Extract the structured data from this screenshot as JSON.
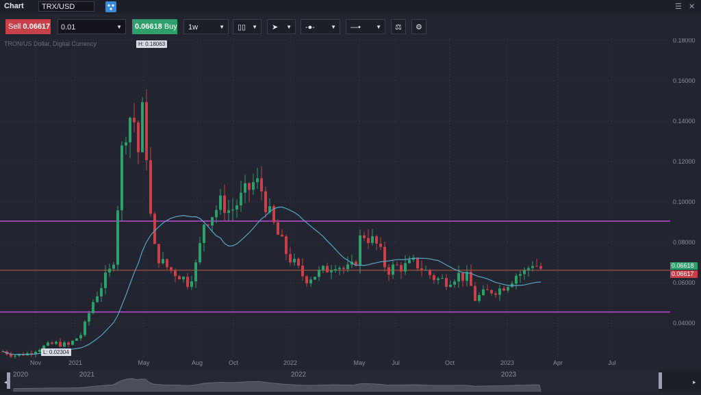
{
  "header": {
    "title": "Chart",
    "symbol": "TRX/USD"
  },
  "toolbar": {
    "sell_label": "Sell",
    "sell_price": "0.06617",
    "quantity": "0.01",
    "buy_price": "0.06618",
    "buy_label": "Buy",
    "timeframe": "1w"
  },
  "chart": {
    "subtitle": "TRON/US Dollar, Digital Currency",
    "high_label": "H: 0.18063",
    "low_label": "L: 0.02304",
    "price_labels": [
      "0.18000",
      "0.16000",
      "0.14000",
      "0.12000",
      "0.10000",
      "0.08000",
      "0.06000",
      "0.04000"
    ],
    "time_labels": [
      "Nov",
      "2021",
      "May",
      "Aug",
      "Oct",
      "2022",
      "May",
      "Jul",
      "Oct",
      "2023",
      "Apr",
      "Jul"
    ],
    "navigator_labels": [
      "2020",
      "2021",
      "2022",
      "2023"
    ],
    "ask_tag": "0.06618",
    "bid_tag": "0.06617",
    "colors": {
      "up": "#2e9e6a",
      "down": "#c8404a",
      "ma": "#5aa8c8",
      "hline": "#c04ad8",
      "price_line": "#c8604a"
    },
    "horizontal_levels": [
      0.0905,
      0.0455
    ],
    "current_price": 0.06617
  },
  "chart_data": {
    "type": "candlestick",
    "title": "TRON/US Dollar, Digital Currency",
    "timeframe": "1w",
    "ylim": [
      0.02,
      0.185
    ],
    "annotations": {
      "high": 0.18063,
      "low": 0.02304
    },
    "series_close_approx": [
      {
        "t": "2020-10",
        "v": 0.025
      },
      {
        "t": "2020-12",
        "v": 0.027
      },
      {
        "t": "2021-01",
        "v": 0.03
      },
      {
        "t": "2021-02",
        "v": 0.05
      },
      {
        "t": "2021-03",
        "v": 0.06
      },
      {
        "t": "2021-04",
        "v": 0.128
      },
      {
        "t": "2021-04b",
        "v": 0.14
      },
      {
        "t": "2021-05",
        "v": 0.078
      },
      {
        "t": "2021-06",
        "v": 0.065
      },
      {
        "t": "2021-07",
        "v": 0.06
      },
      {
        "t": "2021-08",
        "v": 0.09
      },
      {
        "t": "2021-09",
        "v": 0.1
      },
      {
        "t": "2021-10",
        "v": 0.1
      },
      {
        "t": "2021-11",
        "v": 0.1
      },
      {
        "t": "2021-12",
        "v": 0.08
      },
      {
        "t": "2022-01",
        "v": 0.065
      },
      {
        "t": "2022-02",
        "v": 0.062
      },
      {
        "t": "2022-03",
        "v": 0.068
      },
      {
        "t": "2022-04",
        "v": 0.065
      },
      {
        "t": "2022-05",
        "v": 0.08
      },
      {
        "t": "2022-06",
        "v": 0.066
      },
      {
        "t": "2022-07",
        "v": 0.068
      },
      {
        "t": "2022-08",
        "v": 0.068
      },
      {
        "t": "2022-09",
        "v": 0.062
      },
      {
        "t": "2022-10",
        "v": 0.062
      },
      {
        "t": "2022-11",
        "v": 0.052
      },
      {
        "t": "2022-12",
        "v": 0.054
      },
      {
        "t": "2023-01",
        "v": 0.06
      },
      {
        "t": "2023-02",
        "v": 0.064
      },
      {
        "t": "2023-03",
        "v": 0.068
      },
      {
        "t": "2023-03b",
        "v": 0.066
      }
    ]
  }
}
